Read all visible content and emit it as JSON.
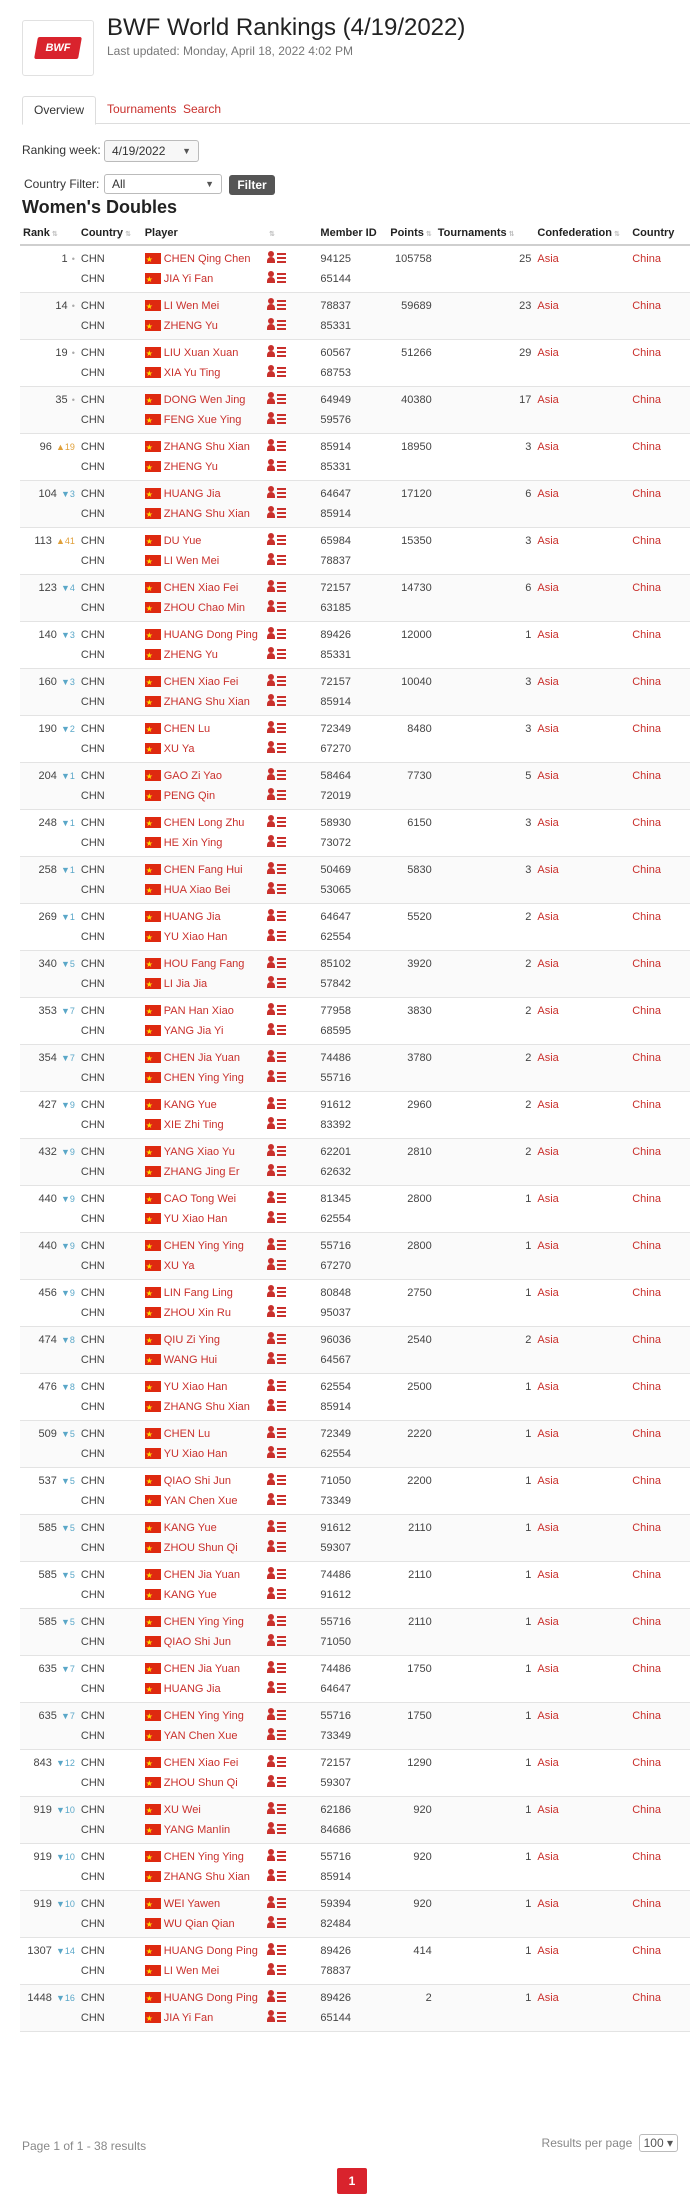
{
  "header": {
    "logo_text": "BWF",
    "title": "BWF World Rankings (4/19/2022)",
    "last_updated": "Last updated: Monday, April 18, 2022 4:02 PM"
  },
  "tabs": [
    {
      "label": "Overview",
      "active": true
    },
    {
      "label": "Tournaments",
      "active": false
    },
    {
      "label": "Search",
      "active": false
    }
  ],
  "filters": {
    "ranking_week_label": "Ranking week:",
    "ranking_week_value": "4/19/2022",
    "country_filter_label": "Country Filter:",
    "country_filter_value": "All",
    "filter_button": "Filter"
  },
  "section_title": "Women's Doubles",
  "columns": [
    "Rank",
    "Country",
    "Player",
    "Member ID",
    "Points",
    "Tournaments",
    "Confederation",
    "Country"
  ],
  "rows": [
    {
      "rank": "1",
      "change": "",
      "dir": "same",
      "countries": [
        "CHN",
        "CHN"
      ],
      "players": [
        "CHEN Qing Chen",
        "JIA Yi Fan"
      ],
      "ids": [
        "94125",
        "65144"
      ],
      "points": "105758",
      "tournaments": "25",
      "confederation": "Asia",
      "country": "China"
    },
    {
      "rank": "14",
      "change": "",
      "dir": "same",
      "countries": [
        "CHN",
        "CHN"
      ],
      "players": [
        "LI Wen Mei",
        "ZHENG Yu"
      ],
      "ids": [
        "78837",
        "85331"
      ],
      "points": "59689",
      "tournaments": "23",
      "confederation": "Asia",
      "country": "China"
    },
    {
      "rank": "19",
      "change": "",
      "dir": "same",
      "countries": [
        "CHN",
        "CHN"
      ],
      "players": [
        "LIU Xuan Xuan",
        "XIA Yu Ting"
      ],
      "ids": [
        "60567",
        "68753"
      ],
      "points": "51266",
      "tournaments": "29",
      "confederation": "Asia",
      "country": "China"
    },
    {
      "rank": "35",
      "change": "",
      "dir": "same",
      "countries": [
        "CHN",
        "CHN"
      ],
      "players": [
        "DONG Wen Jing",
        "FENG Xue Ying"
      ],
      "ids": [
        "64949",
        "59576"
      ],
      "points": "40380",
      "tournaments": "17",
      "confederation": "Asia",
      "country": "China"
    },
    {
      "rank": "96",
      "change": "19",
      "dir": "up",
      "countries": [
        "CHN",
        "CHN"
      ],
      "players": [
        "ZHANG Shu Xian",
        "ZHENG Yu"
      ],
      "ids": [
        "85914",
        "85331"
      ],
      "points": "18950",
      "tournaments": "3",
      "confederation": "Asia",
      "country": "China"
    },
    {
      "rank": "104",
      "change": "3",
      "dir": "down",
      "countries": [
        "CHN",
        "CHN"
      ],
      "players": [
        "HUANG Jia",
        "ZHANG Shu Xian"
      ],
      "ids": [
        "64647",
        "85914"
      ],
      "points": "17120",
      "tournaments": "6",
      "confederation": "Asia",
      "country": "China"
    },
    {
      "rank": "113",
      "change": "41",
      "dir": "up",
      "countries": [
        "CHN",
        "CHN"
      ],
      "players": [
        "DU Yue",
        "LI Wen Mei"
      ],
      "ids": [
        "65984",
        "78837"
      ],
      "points": "15350",
      "tournaments": "3",
      "confederation": "Asia",
      "country": "China"
    },
    {
      "rank": "123",
      "change": "4",
      "dir": "down",
      "countries": [
        "CHN",
        "CHN"
      ],
      "players": [
        "CHEN Xiao Fei",
        "ZHOU Chao Min"
      ],
      "ids": [
        "72157",
        "63185"
      ],
      "points": "14730",
      "tournaments": "6",
      "confederation": "Asia",
      "country": "China"
    },
    {
      "rank": "140",
      "change": "3",
      "dir": "down",
      "countries": [
        "CHN",
        "CHN"
      ],
      "players": [
        "HUANG Dong Ping",
        "ZHENG Yu"
      ],
      "ids": [
        "89426",
        "85331"
      ],
      "points": "12000",
      "tournaments": "1",
      "confederation": "Asia",
      "country": "China"
    },
    {
      "rank": "160",
      "change": "3",
      "dir": "down",
      "countries": [
        "CHN",
        "CHN"
      ],
      "players": [
        "CHEN Xiao Fei",
        "ZHANG Shu Xian"
      ],
      "ids": [
        "72157",
        "85914"
      ],
      "points": "10040",
      "tournaments": "3",
      "confederation": "Asia",
      "country": "China"
    },
    {
      "rank": "190",
      "change": "2",
      "dir": "down",
      "countries": [
        "CHN",
        "CHN"
      ],
      "players": [
        "CHEN Lu",
        "XU Ya"
      ],
      "ids": [
        "72349",
        "67270"
      ],
      "points": "8480",
      "tournaments": "3",
      "confederation": "Asia",
      "country": "China"
    },
    {
      "rank": "204",
      "change": "1",
      "dir": "down",
      "countries": [
        "CHN",
        "CHN"
      ],
      "players": [
        "GAO Zi Yao",
        "PENG Qin"
      ],
      "ids": [
        "58464",
        "72019"
      ],
      "points": "7730",
      "tournaments": "5",
      "confederation": "Asia",
      "country": "China"
    },
    {
      "rank": "248",
      "change": "1",
      "dir": "down",
      "countries": [
        "CHN",
        "CHN"
      ],
      "players": [
        "CHEN Long Zhu",
        "HE Xin Ying"
      ],
      "ids": [
        "58930",
        "73072"
      ],
      "points": "6150",
      "tournaments": "3",
      "confederation": "Asia",
      "country": "China"
    },
    {
      "rank": "258",
      "change": "1",
      "dir": "down",
      "countries": [
        "CHN",
        "CHN"
      ],
      "players": [
        "CHEN Fang Hui",
        "HUA Xiao Bei"
      ],
      "ids": [
        "50469",
        "53065"
      ],
      "points": "5830",
      "tournaments": "3",
      "confederation": "Asia",
      "country": "China"
    },
    {
      "rank": "269",
      "change": "1",
      "dir": "down",
      "countries": [
        "CHN",
        "CHN"
      ],
      "players": [
        "HUANG Jia",
        "YU Xiao Han"
      ],
      "ids": [
        "64647",
        "62554"
      ],
      "points": "5520",
      "tournaments": "2",
      "confederation": "Asia",
      "country": "China"
    },
    {
      "rank": "340",
      "change": "5",
      "dir": "down",
      "countries": [
        "CHN",
        "CHN"
      ],
      "players": [
        "HOU Fang Fang",
        "LI Jia Jia"
      ],
      "ids": [
        "85102",
        "57842"
      ],
      "points": "3920",
      "tournaments": "2",
      "confederation": "Asia",
      "country": "China"
    },
    {
      "rank": "353",
      "change": "7",
      "dir": "down",
      "countries": [
        "CHN",
        "CHN"
      ],
      "players": [
        "PAN Han Xiao",
        "YANG Jia Yi"
      ],
      "ids": [
        "77958",
        "68595"
      ],
      "points": "3830",
      "tournaments": "2",
      "confederation": "Asia",
      "country": "China"
    },
    {
      "rank": "354",
      "change": "7",
      "dir": "down",
      "countries": [
        "CHN",
        "CHN"
      ],
      "players": [
        "CHEN Jia Yuan",
        "CHEN Ying Ying"
      ],
      "ids": [
        "74486",
        "55716"
      ],
      "points": "3780",
      "tournaments": "2",
      "confederation": "Asia",
      "country": "China"
    },
    {
      "rank": "427",
      "change": "9",
      "dir": "down",
      "countries": [
        "CHN",
        "CHN"
      ],
      "players": [
        "KANG Yue",
        "XIE Zhi Ting"
      ],
      "ids": [
        "91612",
        "83392"
      ],
      "points": "2960",
      "tournaments": "2",
      "confederation": "Asia",
      "country": "China"
    },
    {
      "rank": "432",
      "change": "9",
      "dir": "down",
      "countries": [
        "CHN",
        "CHN"
      ],
      "players": [
        "YANG Xiao Yu",
        "ZHANG Jing Er"
      ],
      "ids": [
        "62201",
        "62632"
      ],
      "points": "2810",
      "tournaments": "2",
      "confederation": "Asia",
      "country": "China"
    },
    {
      "rank": "440",
      "change": "9",
      "dir": "down",
      "countries": [
        "CHN",
        "CHN"
      ],
      "players": [
        "CAO Tong Wei",
        "YU Xiao Han"
      ],
      "ids": [
        "81345",
        "62554"
      ],
      "points": "2800",
      "tournaments": "1",
      "confederation": "Asia",
      "country": "China"
    },
    {
      "rank": "440",
      "change": "9",
      "dir": "down",
      "countries": [
        "CHN",
        "CHN"
      ],
      "players": [
        "CHEN Ying Ying",
        "XU Ya"
      ],
      "ids": [
        "55716",
        "67270"
      ],
      "points": "2800",
      "tournaments": "1",
      "confederation": "Asia",
      "country": "China"
    },
    {
      "rank": "456",
      "change": "9",
      "dir": "down",
      "countries": [
        "CHN",
        "CHN"
      ],
      "players": [
        "LIN Fang Ling",
        "ZHOU Xin Ru"
      ],
      "ids": [
        "80848",
        "95037"
      ],
      "points": "2750",
      "tournaments": "1",
      "confederation": "Asia",
      "country": "China"
    },
    {
      "rank": "474",
      "change": "8",
      "dir": "down",
      "countries": [
        "CHN",
        "CHN"
      ],
      "players": [
        "QIU Zi Ying",
        "WANG Hui"
      ],
      "ids": [
        "96036",
        "64567"
      ],
      "points": "2540",
      "tournaments": "2",
      "confederation": "Asia",
      "country": "China"
    },
    {
      "rank": "476",
      "change": "8",
      "dir": "down",
      "countries": [
        "CHN",
        "CHN"
      ],
      "players": [
        "YU Xiao Han",
        "ZHANG Shu Xian"
      ],
      "ids": [
        "62554",
        "85914"
      ],
      "points": "2500",
      "tournaments": "1",
      "confederation": "Asia",
      "country": "China"
    },
    {
      "rank": "509",
      "change": "5",
      "dir": "down",
      "countries": [
        "CHN",
        "CHN"
      ],
      "players": [
        "CHEN Lu",
        "YU Xiao Han"
      ],
      "ids": [
        "72349",
        "62554"
      ],
      "points": "2220",
      "tournaments": "1",
      "confederation": "Asia",
      "country": "China"
    },
    {
      "rank": "537",
      "change": "5",
      "dir": "down",
      "countries": [
        "CHN",
        "CHN"
      ],
      "players": [
        "QIAO Shi Jun",
        "YAN Chen Xue"
      ],
      "ids": [
        "71050",
        "73349"
      ],
      "points": "2200",
      "tournaments": "1",
      "confederation": "Asia",
      "country": "China"
    },
    {
      "rank": "585",
      "change": "5",
      "dir": "down",
      "countries": [
        "CHN",
        "CHN"
      ],
      "players": [
        "KANG Yue",
        "ZHOU Shun Qi"
      ],
      "ids": [
        "91612",
        "59307"
      ],
      "points": "2110",
      "tournaments": "1",
      "confederation": "Asia",
      "country": "China"
    },
    {
      "rank": "585",
      "change": "5",
      "dir": "down",
      "countries": [
        "CHN",
        "CHN"
      ],
      "players": [
        "CHEN Jia Yuan",
        "KANG Yue"
      ],
      "ids": [
        "74486",
        "91612"
      ],
      "points": "2110",
      "tournaments": "1",
      "confederation": "Asia",
      "country": "China"
    },
    {
      "rank": "585",
      "change": "5",
      "dir": "down",
      "countries": [
        "CHN",
        "CHN"
      ],
      "players": [
        "CHEN Ying Ying",
        "QIAO Shi Jun"
      ],
      "ids": [
        "55716",
        "71050"
      ],
      "points": "2110",
      "tournaments": "1",
      "confederation": "Asia",
      "country": "China"
    },
    {
      "rank": "635",
      "change": "7",
      "dir": "down",
      "countries": [
        "CHN",
        "CHN"
      ],
      "players": [
        "CHEN Jia Yuan",
        "HUANG Jia"
      ],
      "ids": [
        "74486",
        "64647"
      ],
      "points": "1750",
      "tournaments": "1",
      "confederation": "Asia",
      "country": "China"
    },
    {
      "rank": "635",
      "change": "7",
      "dir": "down",
      "countries": [
        "CHN",
        "CHN"
      ],
      "players": [
        "CHEN Ying Ying",
        "YAN Chen Xue"
      ],
      "ids": [
        "55716",
        "73349"
      ],
      "points": "1750",
      "tournaments": "1",
      "confederation": "Asia",
      "country": "China"
    },
    {
      "rank": "843",
      "change": "12",
      "dir": "down",
      "countries": [
        "CHN",
        "CHN"
      ],
      "players": [
        "CHEN Xiao Fei",
        "ZHOU Shun Qi"
      ],
      "ids": [
        "72157",
        "59307"
      ],
      "points": "1290",
      "tournaments": "1",
      "confederation": "Asia",
      "country": "China"
    },
    {
      "rank": "919",
      "change": "10",
      "dir": "down",
      "countries": [
        "CHN",
        "CHN"
      ],
      "players": [
        "XU Wei",
        "YANG ManIin"
      ],
      "ids": [
        "62186",
        "84686"
      ],
      "points": "920",
      "tournaments": "1",
      "confederation": "Asia",
      "country": "China"
    },
    {
      "rank": "919",
      "change": "10",
      "dir": "down",
      "countries": [
        "CHN",
        "CHN"
      ],
      "players": [
        "CHEN Ying Ying",
        "ZHANG Shu Xian"
      ],
      "ids": [
        "55716",
        "85914"
      ],
      "points": "920",
      "tournaments": "1",
      "confederation": "Asia",
      "country": "China"
    },
    {
      "rank": "919",
      "change": "10",
      "dir": "down",
      "countries": [
        "CHN",
        "CHN"
      ],
      "players": [
        "WEI Yawen",
        "WU Qian Qian"
      ],
      "ids": [
        "59394",
        "82484"
      ],
      "points": "920",
      "tournaments": "1",
      "confederation": "Asia",
      "country": "China"
    },
    {
      "rank": "1307",
      "change": "14",
      "dir": "down",
      "countries": [
        "CHN",
        "CHN"
      ],
      "players": [
        "HUANG Dong Ping",
        "LI Wen Mei"
      ],
      "ids": [
        "89426",
        "78837"
      ],
      "points": "414",
      "tournaments": "1",
      "confederation": "Asia",
      "country": "China"
    },
    {
      "rank": "1448",
      "change": "16",
      "dir": "down",
      "countries": [
        "CHN",
        "CHN"
      ],
      "players": [
        "HUANG Dong Ping",
        "JIA Yi Fan"
      ],
      "ids": [
        "89426",
        "65144"
      ],
      "points": "2",
      "tournaments": "1",
      "confederation": "Asia",
      "country": "China"
    }
  ],
  "footer": {
    "summary": "Page 1 of 1 - 38 results",
    "results_per_page_label": "Results per page",
    "results_per_page_value": "100",
    "current_page": "1"
  },
  "colors": {
    "accent": "#c9302c",
    "brand_red": "#d9232d",
    "up": "#e0a03a",
    "down": "#5aa7c8"
  }
}
